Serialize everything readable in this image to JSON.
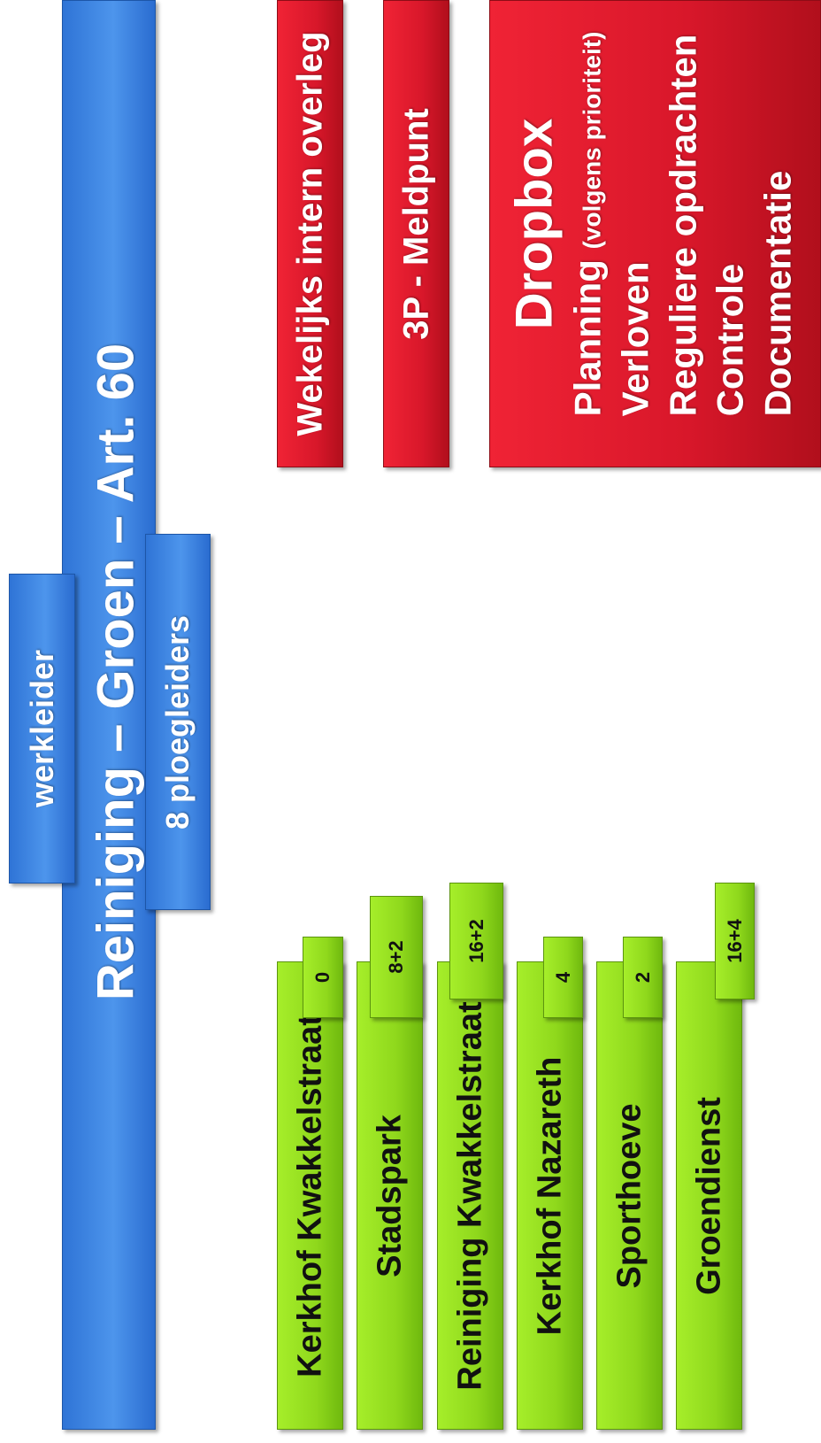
{
  "diagram": {
    "main": "Reiniging – Groen – Art. 60",
    "werkleider": "werkleider",
    "ploegleiders": "8 ploegleiders",
    "overleg": "Wekelijks intern overleg",
    "meldpunt": "3P - Meldpunt",
    "dropbox": {
      "title": "Dropbox",
      "planning": "Planning",
      "planning_note": "(volgens prioriteit)",
      "items": [
        "Verloven",
        "Reguliere opdrachten",
        "Controle",
        "Documentatie"
      ]
    },
    "teams": [
      {
        "name": "Kerkhof Kwakkelstraat",
        "count": "0"
      },
      {
        "name": "Stadspark",
        "count": "8+2"
      },
      {
        "name": "Reiniging Kwakkelstraat",
        "count": "16+2"
      },
      {
        "name": "Kerkhof Nazareth",
        "count": "4"
      },
      {
        "name": "Sporthoeve",
        "count": "2"
      },
      {
        "name": "Groendienst",
        "count": "16+4"
      }
    ]
  }
}
